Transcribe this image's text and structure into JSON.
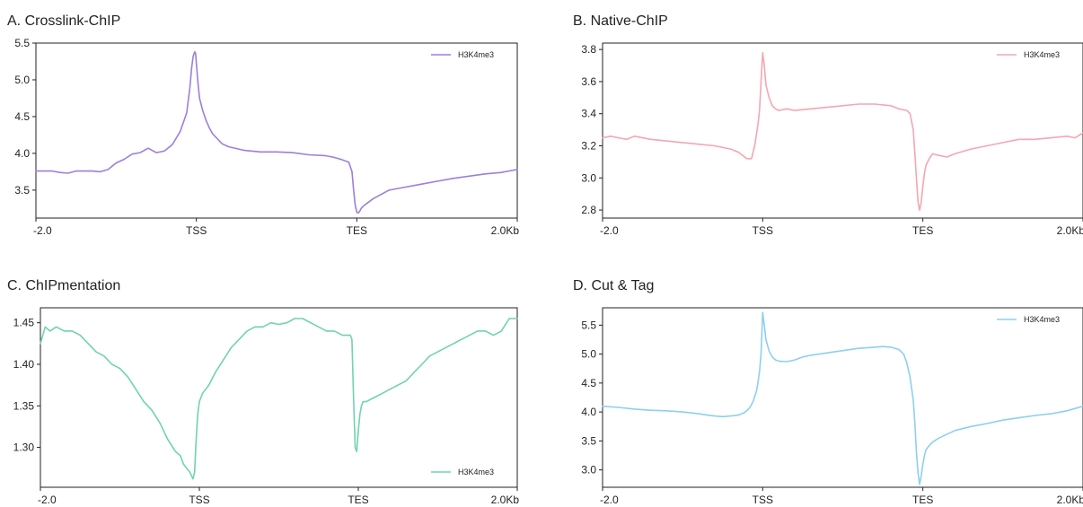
{
  "chart_data": [
    {
      "type": "line",
      "title": "A. Crosslink-ChIP",
      "x_ticks": [
        "-2.0",
        "TSS",
        "TES",
        "2.0Kb"
      ],
      "y_ticks": [
        "3.5",
        "4.0",
        "4.5",
        "5.0",
        "5.5"
      ],
      "ylim": [
        3.12,
        5.5
      ],
      "legend_position": "top-right",
      "series": [
        {
          "name": "H3K4me3",
          "color": "#9b7fdc",
          "x": [
            0,
            5,
            10,
            15,
            20,
            25,
            30,
            35,
            40,
            45,
            50,
            55,
            60,
            65,
            70,
            75,
            80,
            85,
            90,
            94,
            96,
            97,
            98,
            99,
            99.5,
            100,
            101,
            102,
            104,
            106,
            108,
            110,
            113,
            116,
            120,
            130,
            140,
            150,
            160,
            170,
            180,
            185,
            190,
            195,
            197,
            198,
            199,
            200,
            201,
            202,
            203,
            205,
            210,
            215,
            220,
            230,
            240,
            250,
            260,
            270,
            280,
            290,
            300
          ],
          "values": [
            3.76,
            3.76,
            3.76,
            3.74,
            3.73,
            3.76,
            3.76,
            3.76,
            3.75,
            3.78,
            3.87,
            3.92,
            3.99,
            4.01,
            4.07,
            4.01,
            4.03,
            4.12,
            4.3,
            4.55,
            4.9,
            5.15,
            5.32,
            5.38,
            5.36,
            5.22,
            4.95,
            4.75,
            4.58,
            4.45,
            4.35,
            4.27,
            4.2,
            4.13,
            4.09,
            4.04,
            4.02,
            4.02,
            4.01,
            3.98,
            3.97,
            3.95,
            3.92,
            3.88,
            3.75,
            3.5,
            3.3,
            3.2,
            3.19,
            3.22,
            3.26,
            3.3,
            3.38,
            3.44,
            3.5,
            3.54,
            3.58,
            3.62,
            3.66,
            3.69,
            3.72,
            3.74,
            3.78
          ]
        }
      ]
    },
    {
      "type": "line",
      "title": "B. Native-ChIP",
      "x_ticks": [
        "-2.0",
        "TSS",
        "TES",
        "2.0Kb"
      ],
      "y_ticks": [
        "2.8",
        "3.0",
        "3.2",
        "3.4",
        "3.6",
        "3.8"
      ],
      "ylim": [
        2.75,
        3.84
      ],
      "legend_position": "top-right",
      "series": [
        {
          "name": "H3K4me3",
          "color": "#f4a6b2",
          "x": [
            0,
            5,
            10,
            15,
            20,
            30,
            40,
            50,
            60,
            70,
            80,
            85,
            90,
            93,
            95,
            97,
            98,
            99,
            100,
            101,
            102,
            104,
            106,
            108,
            110,
            115,
            120,
            130,
            140,
            150,
            160,
            170,
            180,
            185,
            190,
            192,
            194,
            195,
            196,
            197,
            198,
            199,
            200,
            201,
            202,
            204,
            206,
            210,
            215,
            220,
            230,
            240,
            250,
            260,
            270,
            280,
            290,
            295,
            300
          ],
          "values": [
            3.25,
            3.26,
            3.25,
            3.24,
            3.26,
            3.24,
            3.23,
            3.22,
            3.21,
            3.2,
            3.18,
            3.16,
            3.12,
            3.12,
            3.2,
            3.33,
            3.42,
            3.6,
            3.78,
            3.7,
            3.58,
            3.5,
            3.45,
            3.43,
            3.42,
            3.43,
            3.42,
            3.43,
            3.44,
            3.45,
            3.46,
            3.46,
            3.45,
            3.43,
            3.42,
            3.4,
            3.3,
            3.15,
            3.0,
            2.85,
            2.8,
            2.85,
            2.95,
            3.03,
            3.08,
            3.12,
            3.15,
            3.14,
            3.13,
            3.15,
            3.18,
            3.2,
            3.22,
            3.24,
            3.24,
            3.25,
            3.26,
            3.25,
            3.28
          ]
        }
      ]
    },
    {
      "type": "line",
      "title": "C. ChIPmentation",
      "x_ticks": [
        "-2.0",
        "TSS",
        "TES",
        "2.0Kb"
      ],
      "y_ticks": [
        "1.30",
        "1.35",
        "1.40",
        "1.45"
      ],
      "ylim": [
        1.252,
        1.468
      ],
      "legend_position": "bottom-right",
      "series": [
        {
          "name": "H3K4me3",
          "color": "#6fd3b0",
          "x": [
            0,
            3,
            6,
            10,
            15,
            20,
            25,
            30,
            35,
            40,
            45,
            50,
            55,
            60,
            65,
            70,
            75,
            80,
            85,
            88,
            90,
            92,
            94,
            96,
            97,
            98,
            99,
            100,
            101,
            102,
            104,
            106,
            110,
            115,
            120,
            125,
            130,
            135,
            140,
            145,
            150,
            155,
            160,
            165,
            170,
            175,
            180,
            185,
            190,
            195,
            196,
            197,
            198,
            199,
            200,
            201,
            202,
            203,
            205,
            210,
            215,
            220,
            225,
            230,
            235,
            240,
            245,
            250,
            255,
            260,
            265,
            270,
            275,
            280,
            285,
            290,
            295,
            300
          ],
          "values": [
            1.425,
            1.445,
            1.44,
            1.445,
            1.44,
            1.44,
            1.435,
            1.425,
            1.415,
            1.41,
            1.4,
            1.395,
            1.385,
            1.37,
            1.355,
            1.345,
            1.33,
            1.31,
            1.295,
            1.29,
            1.28,
            1.275,
            1.27,
            1.262,
            1.27,
            1.31,
            1.34,
            1.355,
            1.36,
            1.365,
            1.37,
            1.375,
            1.39,
            1.405,
            1.42,
            1.43,
            1.44,
            1.445,
            1.445,
            1.45,
            1.448,
            1.45,
            1.455,
            1.455,
            1.45,
            1.445,
            1.44,
            1.44,
            1.435,
            1.435,
            1.43,
            1.36,
            1.3,
            1.295,
            1.32,
            1.34,
            1.35,
            1.355,
            1.355,
            1.36,
            1.365,
            1.37,
            1.375,
            1.38,
            1.39,
            1.4,
            1.41,
            1.415,
            1.42,
            1.425,
            1.43,
            1.435,
            1.44,
            1.44,
            1.435,
            1.44,
            1.455,
            1.455
          ]
        }
      ]
    },
    {
      "type": "line",
      "title": "D. Cut & Tag",
      "x_ticks": [
        "-2.0",
        "TSS",
        "TES",
        "2.0Kb"
      ],
      "y_ticks": [
        "3.0",
        "3.5",
        "4.0",
        "4.5",
        "5.0",
        "5.5"
      ],
      "ylim": [
        2.7,
        5.8
      ],
      "legend_position": "top-right",
      "series": [
        {
          "name": "H3K4me3",
          "color": "#8dd0ec",
          "x": [
            0,
            10,
            20,
            30,
            40,
            50,
            60,
            65,
            70,
            75,
            80,
            85,
            88,
            90,
            92,
            94,
            96,
            97,
            98,
            99,
            100,
            101,
            102,
            104,
            106,
            108,
            110,
            115,
            120,
            125,
            130,
            140,
            150,
            160,
            170,
            175,
            180,
            185,
            188,
            190,
            192,
            194,
            195,
            196,
            197,
            198,
            199,
            200,
            201,
            202,
            204,
            206,
            210,
            220,
            230,
            240,
            250,
            260,
            270,
            280,
            290,
            300
          ],
          "values": [
            4.1,
            4.08,
            4.05,
            4.03,
            4.02,
            4.0,
            3.97,
            3.95,
            3.93,
            3.92,
            3.93,
            3.95,
            3.98,
            4.02,
            4.08,
            4.18,
            4.35,
            4.5,
            4.7,
            5.0,
            5.72,
            5.5,
            5.25,
            5.05,
            4.95,
            4.9,
            4.88,
            4.87,
            4.9,
            4.95,
            4.98,
            5.02,
            5.06,
            5.1,
            5.12,
            5.13,
            5.12,
            5.08,
            5.0,
            4.85,
            4.6,
            4.2,
            3.8,
            3.3,
            2.95,
            2.75,
            2.9,
            3.1,
            3.25,
            3.35,
            3.42,
            3.48,
            3.55,
            3.68,
            3.75,
            3.8,
            3.86,
            3.9,
            3.94,
            3.97,
            4.02,
            4.1
          ]
        }
      ]
    }
  ]
}
